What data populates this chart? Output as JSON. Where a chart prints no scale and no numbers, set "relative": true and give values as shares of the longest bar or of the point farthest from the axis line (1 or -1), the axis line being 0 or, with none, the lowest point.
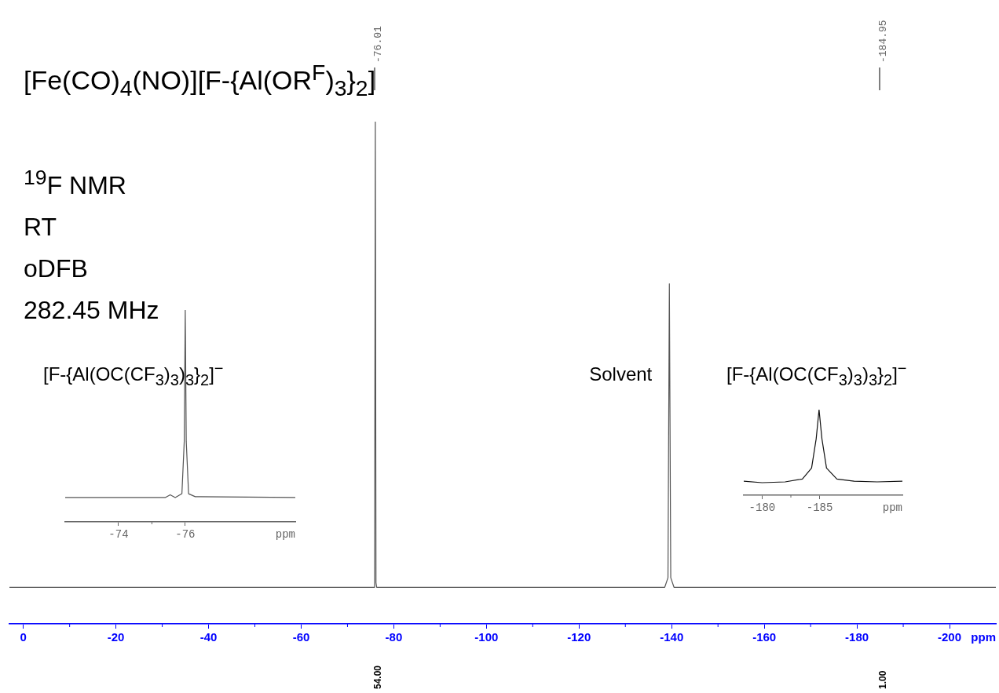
{
  "chart_data": [
    {
      "type": "line",
      "relative": true,
      "title": "[Fe(CO)$_{4}$(NO)][F-{Al(OR$^{F}$)$_{3}$}$_{2}$]",
      "xlabel": "ppm",
      "xlim": [
        3,
        -210
      ],
      "xticks": [
        0,
        -20,
        -40,
        -60,
        -80,
        -100,
        -120,
        -140,
        -160,
        -180,
        -200
      ],
      "x": [
        3,
        -75.7,
        -75.85,
        -76.01,
        -76.15,
        -76.3,
        -138.5,
        -139.2,
        -139.5,
        -139.8,
        -140.5,
        -210
      ],
      "series": [
        {
          "color": "#555555",
          "values": [
            0.073,
            0.073,
            0.082,
            1,
            0.082,
            0.073,
            0.073,
            0.092,
            0.677,
            0.092,
            0.073,
            0.073
          ]
        }
      ],
      "annotations": [
        "$^{19}$F NMR",
        "RT",
        "oDFB",
        "282.45 MHz",
        "-76.01",
        "-184.95",
        "54.00",
        "1.00",
        {
          "text": "Solvent",
          "x": -139.5,
          "y": 0.495
        }
      ]
    },
    {
      "type": "line",
      "relative": true,
      "title": "[F-{Al(OC(CF$_{3}$)$_{3}$)$_{3}$}$_{2}$]$^{−}$",
      "xlabel": "ppm",
      "xlim": [
        -72.4,
        -79.3
      ],
      "xticks": [
        -74,
        -76
      ],
      "x": [
        -72.4,
        -75.4,
        -75.55,
        -75.7,
        -75.9,
        -75.97,
        -76.0,
        -76.03,
        -76.1,
        -76.3,
        -79.3
      ],
      "series": [
        {
          "color": "#555555",
          "values": [
            0.115,
            0.115,
            0.128,
            0.115,
            0.133,
            0.38,
            1,
            0.38,
            0.133,
            0.119,
            0.115
          ]
        }
      ]
    },
    {
      "type": "line",
      "relative": true,
      "title": "[F-{Al(OC(CF$_{3}$)$_{3}$)$_{3}$}$_{2}$]$^{−}$",
      "xlabel": "ppm",
      "xlim": [
        -178.4,
        -192.2
      ],
      "xticks": [
        -180,
        -185
      ],
      "x": [
        -178.4,
        -180,
        -182,
        -183.5,
        -184.3,
        -184.7,
        -184.95,
        -185.2,
        -185.6,
        -186.5,
        -188,
        -190,
        -192.2
      ],
      "series": [
        {
          "color": "#111111",
          "values": [
            0.164,
            0.147,
            0.156,
            0.19,
            0.318,
            0.659,
            1,
            0.659,
            0.318,
            0.19,
            0.164,
            0.156,
            0.164
          ]
        }
      ]
    }
  ]
}
